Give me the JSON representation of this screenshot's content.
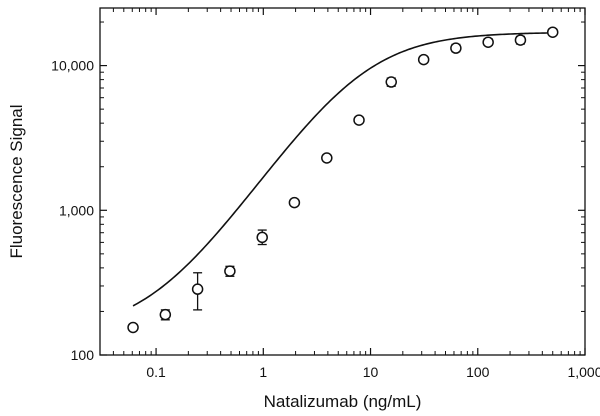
{
  "chart_data": {
    "type": "scatter",
    "title": "",
    "xlabel": "Natalizumab (ng/mL)",
    "ylabel": "Fluorescence Signal",
    "x_scale": "log",
    "y_scale": "log",
    "xlim": [
      0.03,
      1000
    ],
    "ylim": [
      100,
      25000
    ],
    "grid": false,
    "legend": "none",
    "x_ticks": [
      {
        "value": 0.1,
        "label": "0.1"
      },
      {
        "value": 1,
        "label": "1"
      },
      {
        "value": 10,
        "label": "10"
      },
      {
        "value": 100,
        "label": "100"
      },
      {
        "value": 1000,
        "label": "1,000"
      }
    ],
    "y_ticks": [
      {
        "value": 100,
        "label": "100"
      },
      {
        "value": 1000,
        "label": "1,000"
      },
      {
        "value": 10000,
        "label": "10,000"
      }
    ],
    "points": [
      {
        "x": 0.061,
        "y": 155,
        "err_low": 150,
        "err_high": 160
      },
      {
        "x": 0.122,
        "y": 190,
        "err_low": 175,
        "err_high": 205
      },
      {
        "x": 0.244,
        "y": 285,
        "err_low": 205,
        "err_high": 370
      },
      {
        "x": 0.488,
        "y": 380,
        "err_low": 350,
        "err_high": 410
      },
      {
        "x": 0.977,
        "y": 650,
        "err_low": 580,
        "err_high": 730
      },
      {
        "x": 1.95,
        "y": 1130,
        "err_low": 1080,
        "err_high": 1180
      },
      {
        "x": 3.91,
        "y": 2300,
        "err_low": 2200,
        "err_high": 2400
      },
      {
        "x": 7.81,
        "y": 4200,
        "err_low": 4000,
        "err_high": 4400
      },
      {
        "x": 15.6,
        "y": 7700,
        "err_low": 7200,
        "err_high": 8200
      },
      {
        "x": 31.3,
        "y": 11000,
        "err_low": 10500,
        "err_high": 11500
      },
      {
        "x": 62.5,
        "y": 13200,
        "err_low": 12500,
        "err_high": 14000
      },
      {
        "x": 125,
        "y": 14500,
        "err_low": 13800,
        "err_high": 15300
      },
      {
        "x": 250,
        "y": 15000,
        "err_low": 14100,
        "err_high": 15900
      },
      {
        "x": 500,
        "y": 17000,
        "err_low": 16300,
        "err_high": 17800
      }
    ],
    "fit_curve": {
      "type": "4PL",
      "bottom": 140,
      "top": 17000,
      "ec50": 8,
      "hill": 1.1
    }
  }
}
